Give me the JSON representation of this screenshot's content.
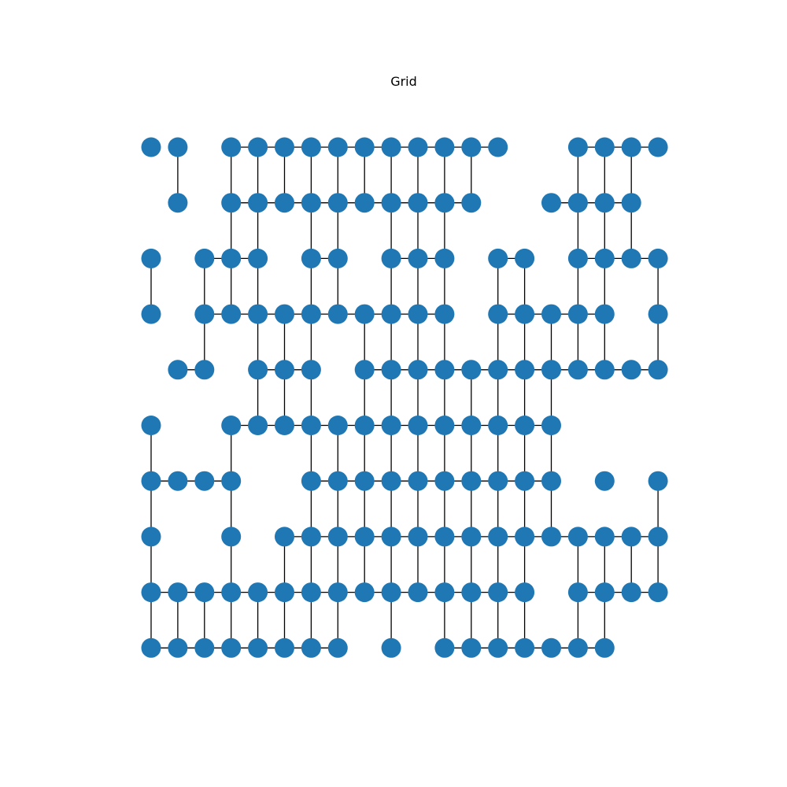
{
  "title": "Grid",
  "node_color": "#1f77b4",
  "edge_color": "#000000",
  "chart_data": {
    "type": "network",
    "title": "Grid",
    "grid_columns": 20,
    "grid_rows": 10,
    "rows": [
      {
        "nodes": [
          0,
          1,
          3,
          4,
          5,
          6,
          7,
          8,
          9,
          10,
          11,
          12,
          13,
          16,
          17,
          18,
          19
        ],
        "h": [
          [
            3,
            13
          ],
          [
            16,
            19
          ]
        ],
        "v_down": [
          1,
          3,
          4,
          5,
          6,
          7,
          8,
          9,
          10,
          11,
          12,
          16,
          17,
          18
        ]
      },
      {
        "nodes": [
          1,
          3,
          4,
          5,
          6,
          7,
          8,
          9,
          10,
          11,
          12,
          15,
          16,
          17,
          18
        ],
        "h": [
          [
            3,
            12
          ],
          [
            15,
            18
          ]
        ],
        "v_down": [
          3,
          4,
          6,
          7,
          9,
          10,
          11,
          16,
          17,
          18
        ]
      },
      {
        "nodes": [
          0,
          2,
          3,
          4,
          6,
          7,
          9,
          10,
          11,
          13,
          14,
          16,
          17,
          18,
          19
        ],
        "h": [
          [
            2,
            4
          ],
          [
            6,
            7
          ],
          [
            9,
            11
          ],
          [
            13,
            14
          ],
          [
            16,
            19
          ]
        ],
        "v_down": [
          0,
          2,
          3,
          4,
          6,
          7,
          9,
          10,
          11,
          13,
          14,
          16,
          17,
          19
        ]
      },
      {
        "nodes": [
          0,
          2,
          3,
          4,
          5,
          6,
          7,
          8,
          9,
          10,
          11,
          13,
          14,
          15,
          16,
          17,
          19
        ],
        "h": [
          [
            2,
            11
          ],
          [
            13,
            17
          ]
        ],
        "v_down": [
          2,
          4,
          5,
          6,
          8,
          9,
          10,
          11,
          13,
          14,
          15,
          16,
          17,
          19
        ]
      },
      {
        "nodes": [
          1,
          2,
          4,
          5,
          6,
          8,
          9,
          10,
          11,
          12,
          13,
          14,
          15,
          16,
          17,
          18,
          19
        ],
        "h": [
          [
            1,
            2
          ],
          [
            4,
            6
          ],
          [
            8,
            19
          ]
        ],
        "v_down": [
          4,
          5,
          6,
          8,
          9,
          10,
          11,
          12,
          13,
          14,
          15
        ]
      },
      {
        "nodes": [
          0,
          3,
          4,
          5,
          6,
          7,
          8,
          9,
          10,
          11,
          12,
          13,
          14,
          15
        ],
        "h": [
          [
            3,
            15
          ]
        ],
        "v_down": [
          0,
          3,
          6,
          7,
          8,
          9,
          10,
          11,
          12,
          13,
          14,
          15
        ]
      },
      {
        "nodes": [
          0,
          1,
          2,
          3,
          6,
          7,
          8,
          9,
          10,
          11,
          12,
          13,
          14,
          15,
          17,
          19
        ],
        "h": [
          [
            0,
            3
          ],
          [
            6,
            15
          ]
        ],
        "v_down": [
          0,
          3,
          6,
          7,
          8,
          9,
          10,
          11,
          12,
          13,
          14,
          15,
          19
        ]
      },
      {
        "nodes": [
          0,
          3,
          5,
          6,
          7,
          8,
          9,
          10,
          11,
          12,
          13,
          14,
          15,
          16,
          17,
          18,
          19
        ],
        "h": [
          [
            5,
            19
          ]
        ],
        "v_down": [
          0,
          3,
          5,
          6,
          7,
          8,
          9,
          10,
          11,
          12,
          13,
          14,
          16,
          17,
          18,
          19
        ]
      },
      {
        "nodes": [
          0,
          1,
          2,
          3,
          4,
          5,
          6,
          7,
          8,
          9,
          10,
          11,
          12,
          13,
          14,
          16,
          17,
          18,
          19
        ],
        "h": [
          [
            0,
            14
          ],
          [
            16,
            19
          ]
        ],
        "v_down": [
          0,
          1,
          2,
          3,
          4,
          5,
          6,
          7,
          9,
          11,
          12,
          13,
          14,
          16,
          17
        ]
      },
      {
        "nodes": [
          0,
          1,
          2,
          3,
          4,
          5,
          6,
          7,
          9,
          11,
          12,
          13,
          14,
          15,
          16,
          17
        ],
        "h": [
          [
            0,
            7
          ],
          [
            11,
            17
          ]
        ],
        "v_down": []
      }
    ]
  }
}
